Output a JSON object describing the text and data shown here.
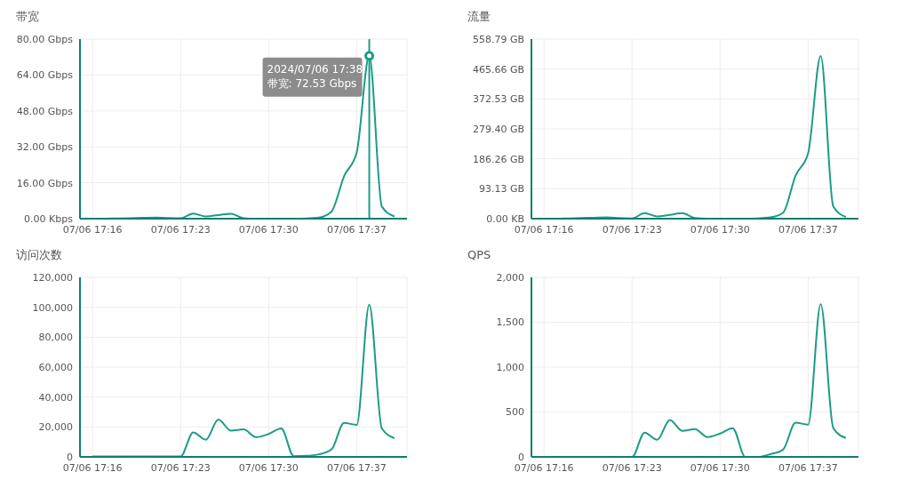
{
  "chart_data": [
    {
      "type": "line",
      "title": "带宽",
      "x": [
        "2024-07-06T17:16",
        "2024-07-06T17:17",
        "2024-07-06T17:18",
        "2024-07-06T17:19",
        "2024-07-06T17:20",
        "2024-07-06T17:21",
        "2024-07-06T17:22",
        "2024-07-06T17:23",
        "2024-07-06T17:24",
        "2024-07-06T17:25",
        "2024-07-06T17:26",
        "2024-07-06T17:27",
        "2024-07-06T17:28",
        "2024-07-06T17:29",
        "2024-07-06T17:30",
        "2024-07-06T17:31",
        "2024-07-06T17:32",
        "2024-07-06T17:33",
        "2024-07-06T17:34",
        "2024-07-06T17:35",
        "2024-07-06T17:36",
        "2024-07-06T17:37",
        "2024-07-06T17:38",
        "2024-07-06T17:39",
        "2024-07-06T17:40"
      ],
      "series": [
        {
          "color": "#1b9c85",
          "values": [
            0,
            0,
            0.1,
            0.2,
            0.4,
            0.5,
            0.3,
            0.2,
            2.3,
            1.0,
            1.6,
            2.2,
            0.2,
            0,
            0,
            0,
            0,
            0.1,
            0.5,
            3.2,
            19,
            29.5,
            72.53,
            5.4,
            1.0
          ]
        }
      ],
      "xlim": [
        "2024-07-06T17:15",
        "2024-07-06T17:41"
      ],
      "xticks": [
        {
          "value": "2024-07-06T17:16",
          "label": "07/06 17:16"
        },
        {
          "value": "2024-07-06T17:23",
          "label": "07/06 17:23"
        },
        {
          "value": "2024-07-06T17:30",
          "label": "07/06 17:30"
        },
        {
          "value": "2024-07-06T17:37",
          "label": "07/06 17:37"
        }
      ],
      "ylim": [
        0,
        80
      ],
      "yticks": [
        {
          "value": 0,
          "label": "0.00 Kbps"
        },
        {
          "value": 16,
          "label": "16.00 Gbps"
        },
        {
          "value": 32,
          "label": "32.00 Gbps"
        },
        {
          "value": 48,
          "label": "48.00 Gbps"
        },
        {
          "value": 64,
          "label": "64.00 Gbps"
        },
        {
          "value": 80,
          "label": "80.00 Gbps"
        }
      ],
      "grid": true,
      "ref_lines": [
        {
          "axis": "x",
          "value": "2024-07-06T17:38",
          "color": "#1b9c85"
        }
      ],
      "annotations": [
        {
          "text": "2024/07/06 17:38\n带宽: 72.53 Gbps",
          "x": "2024-07-06T17:38",
          "y": 72.53
        }
      ]
    },
    {
      "type": "line",
      "title": "流量",
      "x": [
        "2024-07-06T17:16",
        "2024-07-06T17:17",
        "2024-07-06T17:18",
        "2024-07-06T17:19",
        "2024-07-06T17:20",
        "2024-07-06T17:21",
        "2024-07-06T17:22",
        "2024-07-06T17:23",
        "2024-07-06T17:24",
        "2024-07-06T17:25",
        "2024-07-06T17:26",
        "2024-07-06T17:27",
        "2024-07-06T17:28",
        "2024-07-06T17:29",
        "2024-07-06T17:30",
        "2024-07-06T17:31",
        "2024-07-06T17:32",
        "2024-07-06T17:33",
        "2024-07-06T17:34",
        "2024-07-06T17:35",
        "2024-07-06T17:36",
        "2024-07-06T17:37",
        "2024-07-06T17:38",
        "2024-07-06T17:39",
        "2024-07-06T17:40"
      ],
      "series": [
        {
          "color": "#1b9c85",
          "values": [
            0,
            0,
            1,
            2,
            3,
            4,
            2,
            1,
            17,
            7,
            12,
            17,
            2,
            0,
            0,
            0,
            0,
            1,
            4,
            18,
            134,
            204,
            506,
            38,
            5
          ]
        }
      ],
      "xlim": [
        "2024-07-06T17:15",
        "2024-07-06T17:41"
      ],
      "xticks": [
        {
          "value": "2024-07-06T17:16",
          "label": "07/06 17:16"
        },
        {
          "value": "2024-07-06T17:23",
          "label": "07/06 17:23"
        },
        {
          "value": "2024-07-06T17:30",
          "label": "07/06 17:30"
        },
        {
          "value": "2024-07-06T17:37",
          "label": "07/06 17:37"
        }
      ],
      "ylim": [
        0,
        558.79
      ],
      "yticks": [
        {
          "value": 0,
          "label": "0.00 KB"
        },
        {
          "value": 93.13,
          "label": "93.13 GB"
        },
        {
          "value": 186.26,
          "label": "186.26 GB"
        },
        {
          "value": 279.4,
          "label": "279.40 GB"
        },
        {
          "value": 372.53,
          "label": "372.53 GB"
        },
        {
          "value": 465.66,
          "label": "465.66 GB"
        },
        {
          "value": 558.79,
          "label": "558.79 GB"
        }
      ],
      "grid": true
    },
    {
      "type": "line",
      "title": "访问次数",
      "x": [
        "2024-07-06T17:16",
        "2024-07-06T17:17",
        "2024-07-06T17:18",
        "2024-07-06T17:19",
        "2024-07-06T17:20",
        "2024-07-06T17:21",
        "2024-07-06T17:22",
        "2024-07-06T17:23",
        "2024-07-06T17:24",
        "2024-07-06T17:25",
        "2024-07-06T17:26",
        "2024-07-06T17:27",
        "2024-07-06T17:28",
        "2024-07-06T17:29",
        "2024-07-06T17:30",
        "2024-07-06T17:31",
        "2024-07-06T17:32",
        "2024-07-06T17:33",
        "2024-07-06T17:34",
        "2024-07-06T17:35",
        "2024-07-06T17:36",
        "2024-07-06T17:37",
        "2024-07-06T17:38",
        "2024-07-06T17:39",
        "2024-07-06T17:40"
      ],
      "series": [
        {
          "color": "#1b9c85",
          "values": [
            300,
            300,
            300,
            300,
            300,
            300,
            300,
            300,
            16400,
            11500,
            25000,
            17500,
            18400,
            13200,
            15300,
            19000,
            500,
            700,
            1700,
            5000,
            22700,
            21400,
            101800,
            19000,
            12500
          ]
        }
      ],
      "xlim": [
        "2024-07-06T17:15",
        "2024-07-06T17:41"
      ],
      "xticks": [
        {
          "value": "2024-07-06T17:16",
          "label": "07/06 17:16"
        },
        {
          "value": "2024-07-06T17:23",
          "label": "07/06 17:23"
        },
        {
          "value": "2024-07-06T17:30",
          "label": "07/06 17:30"
        },
        {
          "value": "2024-07-06T17:37",
          "label": "07/06 17:37"
        }
      ],
      "ylim": [
        0,
        120000
      ],
      "yticks": [
        {
          "value": 0,
          "label": "0"
        },
        {
          "value": 20000,
          "label": "20,000"
        },
        {
          "value": 40000,
          "label": "40,000"
        },
        {
          "value": 60000,
          "label": "60,000"
        },
        {
          "value": 80000,
          "label": "80,000"
        },
        {
          "value": 100000,
          "label": "100,000"
        },
        {
          "value": 120000,
          "label": "120,000"
        }
      ],
      "grid": true
    },
    {
      "type": "line",
      "title": "QPS",
      "x": [
        "2024-07-06T17:16",
        "2024-07-06T17:17",
        "2024-07-06T17:18",
        "2024-07-06T17:19",
        "2024-07-06T17:20",
        "2024-07-06T17:21",
        "2024-07-06T17:22",
        "2024-07-06T17:23",
        "2024-07-06T17:24",
        "2024-07-06T17:25",
        "2024-07-06T17:26",
        "2024-07-06T17:27",
        "2024-07-06T17:28",
        "2024-07-06T17:29",
        "2024-07-06T17:30",
        "2024-07-06T17:31",
        "2024-07-06T17:32",
        "2024-07-06T17:33",
        "2024-07-06T17:34",
        "2024-07-06T17:35",
        "2024-07-06T17:36",
        "2024-07-06T17:37",
        "2024-07-06T17:38",
        "2024-07-06T17:39",
        "2024-07-06T17:40"
      ],
      "series": [
        {
          "color": "#1b9c85",
          "values": [
            0,
            0,
            0,
            0,
            0,
            0,
            0,
            0,
            270,
            190,
            410,
            290,
            310,
            220,
            260,
            320,
            0,
            0,
            30,
            80,
            380,
            360,
            1700,
            320,
            210
          ]
        }
      ],
      "xlim": [
        "2024-07-06T17:15",
        "2024-07-06T17:41"
      ],
      "xticks": [
        {
          "value": "2024-07-06T17:16",
          "label": "07/06 17:16"
        },
        {
          "value": "2024-07-06T17:23",
          "label": "07/06 17:23"
        },
        {
          "value": "2024-07-06T17:30",
          "label": "07/06 17:30"
        },
        {
          "value": "2024-07-06T17:37",
          "label": "07/06 17:37"
        }
      ],
      "ylim": [
        0,
        2000
      ],
      "yticks": [
        {
          "value": 0,
          "label": "0"
        },
        500,
        {
          "value": 1000,
          "label": "1,000"
        },
        {
          "value": 1500,
          "label": "1,500"
        },
        {
          "value": 2000,
          "label": "2,000"
        }
      ],
      "grid": true
    }
  ]
}
